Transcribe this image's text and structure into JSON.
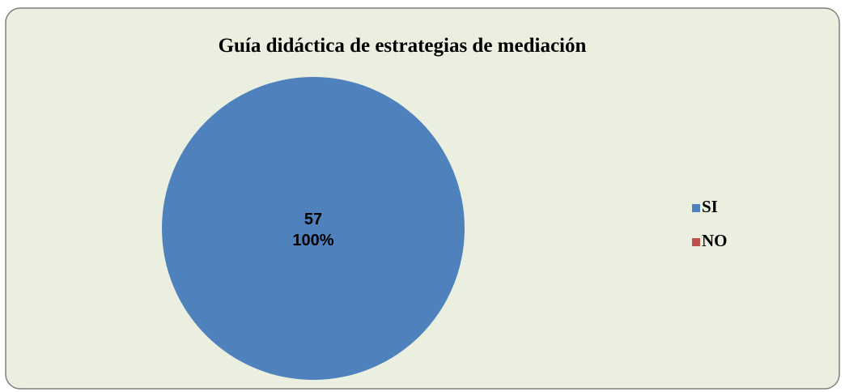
{
  "chart_data": {
    "type": "pie",
    "title": "Guía didáctica de estrategias de mediación",
    "categories": [
      "SI",
      "NO"
    ],
    "values": [
      57,
      0
    ],
    "percentages": [
      100,
      0
    ],
    "percentage_labels": [
      "100%",
      null
    ],
    "colors": [
      "#4f81bd",
      "#c0504d"
    ],
    "legend": "right"
  }
}
